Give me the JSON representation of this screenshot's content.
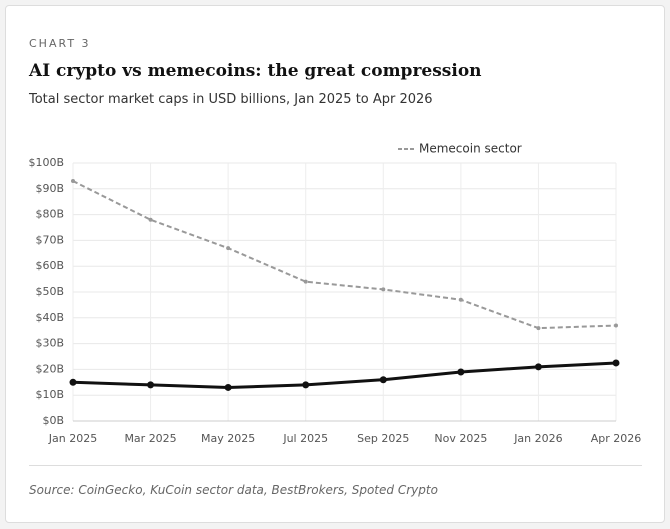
{
  "chart_data": {
    "type": "line",
    "label": "CHART 3",
    "title": "AI crypto vs memecoins: the great compression",
    "subtitle": "Total sector market caps in USD billions, Jan 2025 to Apr 2026",
    "source": "Source: CoinGecko, KuCoin sector data, BestBrokers, Spoted Crypto",
    "categories": [
      "Jan 2025",
      "Mar 2025",
      "May 2025",
      "Jul 2025",
      "Sep 2025",
      "Nov 2025",
      "Jan 2026",
      "Apr 2026"
    ],
    "series": [
      {
        "name": "Memecoin sector",
        "color": "#999999",
        "dashed": true,
        "values": [
          93,
          78,
          67,
          54,
          51,
          47,
          36,
          37
        ]
      },
      {
        "color": "#111111",
        "dashed": false,
        "values": [
          15,
          14,
          13,
          14,
          16,
          19,
          21,
          22.5
        ]
      }
    ],
    "ylim": [
      0,
      100
    ],
    "yticks": [
      {
        "value": 0,
        "label": "$0B"
      },
      {
        "value": 10,
        "label": "$10B"
      },
      {
        "value": 20,
        "label": "$20B"
      },
      {
        "value": 30,
        "label": "$30B"
      },
      {
        "value": 40,
        "label": "$40B"
      },
      {
        "value": 50,
        "label": "$50B"
      },
      {
        "value": 60,
        "label": "$60B"
      },
      {
        "value": 70,
        "label": "$70B"
      },
      {
        "value": 80,
        "label": "$80B"
      },
      {
        "value": 90,
        "label": "$90B"
      },
      {
        "value": 100,
        "label": "$100B"
      }
    ],
    "grid": true,
    "legend": "top-right"
  }
}
